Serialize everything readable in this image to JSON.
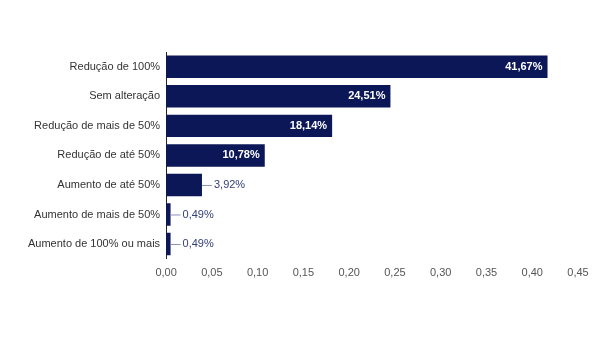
{
  "chart_data": {
    "type": "bar",
    "orientation": "horizontal",
    "categories": [
      "Redução de 100%",
      "Sem alteração",
      "Redução de mais de 50%",
      "Redução de até 50%",
      "Aumento de até 50%",
      "Aumento de mais de 50%",
      "Aumento de 100% ou mais"
    ],
    "values": [
      0.4167,
      0.2451,
      0.1814,
      0.1078,
      0.0392,
      0.0049,
      0.0049
    ],
    "value_labels": [
      "41,67%",
      "24,51%",
      "18,14%",
      "10,78%",
      "3,92%",
      "0,49%",
      "0,49%"
    ],
    "data_labels": true,
    "color": "#0c1757",
    "xlim": [
      0,
      0.45
    ],
    "xticks": [
      {
        "value": 0,
        "label": "0,00"
      },
      {
        "value": 0.05,
        "label": "0,05"
      },
      {
        "value": 0.1,
        "label": "0,10"
      },
      {
        "value": 0.15,
        "label": "0,15"
      },
      {
        "value": 0.2,
        "label": "0,20"
      },
      {
        "value": 0.25,
        "label": "0,25"
      },
      {
        "value": 0.3,
        "label": "0,30"
      },
      {
        "value": 0.35,
        "label": "0,35"
      },
      {
        "value": 0.4,
        "label": "0,40"
      },
      {
        "value": 0.45,
        "label": "0,45"
      }
    ],
    "grid": false
  }
}
